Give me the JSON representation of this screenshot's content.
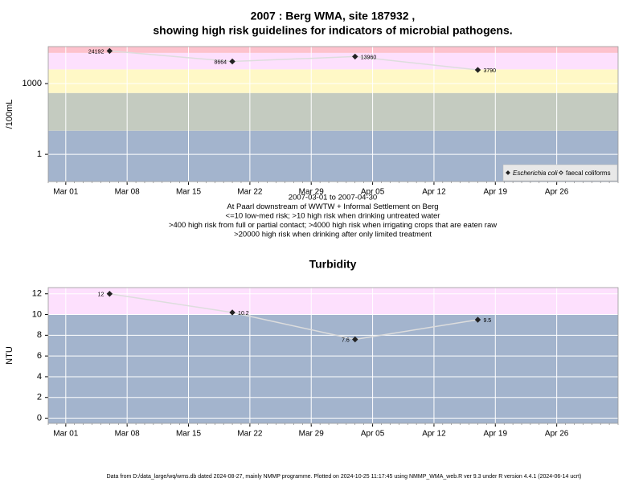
{
  "chart_data": [
    {
      "type": "line",
      "title": "2007 : Berg WMA, site 187932 ,",
      "subtitle": "showing high risk guidelines for indicators of microbial pathogens.",
      "ylabel": "/100mL",
      "notes": [
        "2007-03-01 to 2007-04-30",
        "At Paarl downstream of WWTW + Informal Settlement on Berg",
        "<=10 low-med risk; >10 high risk when drinking untreated water",
        ">400 high risk from full or partial contact; >4000 high risk when irrigating crops that are eaten raw",
        ">20000 high risk when drinking after only limited treatment"
      ],
      "log_y": true,
      "grid": true,
      "legend": "lower right",
      "x": [
        "2007-03-06",
        "2007-03-20",
        "2007-04-03",
        "2007-04-17"
      ],
      "xlim": [
        "2007-02-27",
        "2007-05-03"
      ],
      "xticks": [
        {
          "value": "2007-03-01",
          "label": "Mar 01"
        },
        {
          "value": "2007-03-08",
          "label": "Mar 08"
        },
        {
          "value": "2007-03-15",
          "label": "Mar 15"
        },
        {
          "value": "2007-03-22",
          "label": "Mar 22"
        },
        {
          "value": "2007-03-29",
          "label": "Mar 29"
        },
        {
          "value": "2007-04-05",
          "label": "Apr 05"
        },
        {
          "value": "2007-04-12",
          "label": "Apr 12"
        },
        {
          "value": "2007-04-19",
          "label": "Apr 19"
        },
        {
          "value": "2007-04-26",
          "label": "Apr 26"
        }
      ],
      "ylim": [
        0.07,
        37000
      ],
      "yticks": [
        1,
        1000
      ],
      "bands": [
        {
          "from": 0.07,
          "to": 10,
          "color": "#a3b4cd"
        },
        {
          "from": 10,
          "to": 400,
          "color": "#c4cbc0"
        },
        {
          "from": 400,
          "to": 4000,
          "color": "#fff8c6"
        },
        {
          "from": 4000,
          "to": 20000,
          "color": "#fde0fd"
        },
        {
          "from": 20000,
          "to": 37000,
          "color": "#fdc2cd"
        }
      ],
      "series": [
        {
          "name": "Escherichia coli",
          "color": "#222222",
          "line_color": "#dddddd",
          "marker": "filled",
          "values": [
            24192,
            8664,
            13960,
            3790
          ]
        },
        {
          "name": "faecal coliforms",
          "color": "#222222",
          "line_color": "#dddddd",
          "marker": "open",
          "values": [
            null,
            null,
            null,
            null
          ]
        }
      ]
    },
    {
      "type": "line",
      "title": "Turbidity",
      "ylabel": "NTU",
      "grid": true,
      "x": [
        "2007-03-06",
        "2007-03-20",
        "2007-04-03",
        "2007-04-17"
      ],
      "xlim": [
        "2007-02-27",
        "2007-05-03"
      ],
      "xticks": [
        {
          "value": "2007-03-01",
          "label": "Mar 01"
        },
        {
          "value": "2007-03-08",
          "label": "Mar 08"
        },
        {
          "value": "2007-03-15",
          "label": "Mar 15"
        },
        {
          "value": "2007-03-22",
          "label": "Mar 22"
        },
        {
          "value": "2007-03-29",
          "label": "Mar 29"
        },
        {
          "value": "2007-04-05",
          "label": "Apr 05"
        },
        {
          "value": "2007-04-12",
          "label": "Apr 12"
        },
        {
          "value": "2007-04-19",
          "label": "Apr 19"
        },
        {
          "value": "2007-04-26",
          "label": "Apr 26"
        }
      ],
      "ylim": [
        -0.5,
        12.6
      ],
      "yticks": [
        0,
        2,
        4,
        6,
        8,
        10,
        12
      ],
      "bands": [
        {
          "from": -0.5,
          "to": 10,
          "color": "#a3b4cd"
        },
        {
          "from": 10,
          "to": 12.6,
          "color": "#fde0fd"
        }
      ],
      "series": [
        {
          "name": "Turbidity",
          "color": "#222222",
          "line_color": "#dddddd",
          "marker": "filled",
          "values": [
            12,
            10.2,
            7.6,
            9.5
          ]
        }
      ]
    }
  ],
  "footer": "Data from D:/data_large/wq/wms.db dated 2024-08-27, mainly NMMP programme. Plotted on 2024-10-25 11:17:45 using NMMP_WMA_web.R ver 9.3 under R version 4.4.1 (2024-06-14 ucrt)"
}
